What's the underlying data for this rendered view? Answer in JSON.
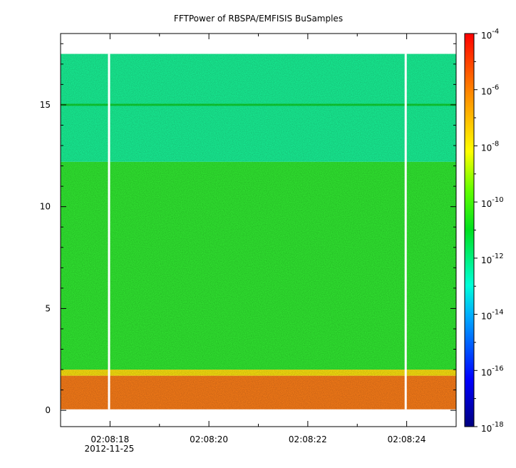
{
  "chart_data": {
    "type": "heatmap",
    "title": "FFTPower of RBSPA/EMFISIS  BuSamples",
    "xlabel": "",
    "ylabel": "",
    "x_range": [
      "02:08:17.0",
      "02:08:25.0"
    ],
    "x_ticks": [
      {
        "label": "02:08:18",
        "t": 1.0
      },
      {
        "label": "02:08:20",
        "t": 3.0
      },
      {
        "label": "02:08:22",
        "t": 5.0
      },
      {
        "label": "02:08:24",
        "t": 7.0
      }
    ],
    "x_minor_ticks": [
      0.0,
      2.0,
      4.0,
      6.0,
      8.0
    ],
    "x_date_label": "2012-11-25",
    "ylim": [
      -0.8,
      18.5
    ],
    "y_ticks": [
      0,
      5,
      10,
      15
    ],
    "data_y_extent": [
      0.05,
      17.5
    ],
    "data_gaps_t": [
      0.98,
      6.98
    ],
    "colorbar": {
      "scale": "log",
      "range": [
        1e-18,
        0.0001
      ],
      "tick_exponents": [
        -18,
        -16,
        -14,
        -12,
        -10,
        -8,
        -6,
        -4
      ],
      "tick_base": "10"
    },
    "bands": [
      {
        "y_range": [
          0.05,
          1.7
        ],
        "log10_power": -7.0,
        "color": "#f07818",
        "description": "orange"
      },
      {
        "y_range": [
          1.7,
          2.0
        ],
        "log10_power": -8.0,
        "color": "#f0d810"
      },
      {
        "y_range": [
          2.0,
          12.2
        ],
        "log10_power": -10.3,
        "color": "#30e030"
      },
      {
        "y_range": [
          12.2,
          17.5
        ],
        "log10_power": -11.5,
        "color": "#18e890"
      },
      {
        "y_range": [
          14.95,
          15.05
        ],
        "log10_power": -10.5,
        "color": "#10c830"
      }
    ]
  }
}
